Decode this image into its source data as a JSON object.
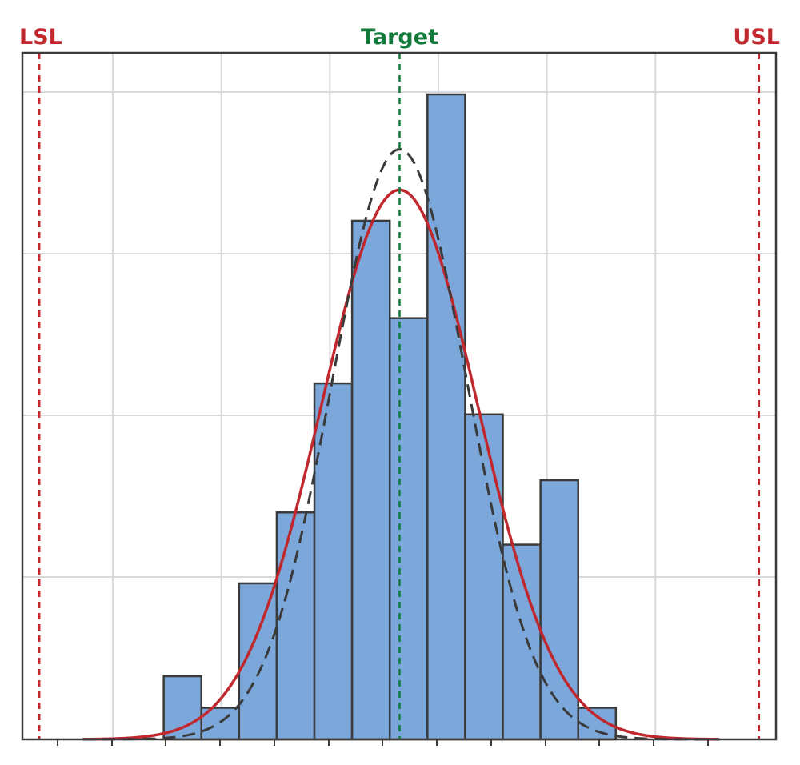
{
  "chart_data": {
    "type": "bar",
    "title": "",
    "xlabel": "",
    "ylabel": "",
    "xlim": [
      0,
      1
    ],
    "ylim": [
      0,
      1
    ],
    "grid": true,
    "bins": [
      {
        "x0": 0.1875,
        "x1": 0.2375,
        "value": 0.098
      },
      {
        "x0": 0.2375,
        "x1": 0.2875,
        "value": 0.049
      },
      {
        "x0": 0.2875,
        "x1": 0.3375,
        "value": 0.242
      },
      {
        "x0": 0.3375,
        "x1": 0.3875,
        "value": 0.352
      },
      {
        "x0": 0.3875,
        "x1": 0.4375,
        "value": 0.552
      },
      {
        "x0": 0.4375,
        "x1": 0.4875,
        "value": 0.804
      },
      {
        "x0": 0.4875,
        "x1": 0.5375,
        "value": 0.653
      },
      {
        "x0": 0.5375,
        "x1": 0.5875,
        "value": 1.0
      },
      {
        "x0": 0.5875,
        "x1": 0.6375,
        "value": 0.504
      },
      {
        "x0": 0.6375,
        "x1": 0.6875,
        "value": 0.302
      },
      {
        "x0": 0.6875,
        "x1": 0.7375,
        "value": 0.402
      },
      {
        "x0": 0.7375,
        "x1": 0.7875,
        "value": 0.049
      }
    ],
    "fit_curves": [
      {
        "style": "solid",
        "color": "#c0282d",
        "mean": 0.5005,
        "sd": 0.104,
        "peak": 0.852
      },
      {
        "style": "dashed",
        "color": "#3a3a3a",
        "mean": 0.5005,
        "sd": 0.0895,
        "peak": 0.915
      }
    ],
    "spec_lines": [
      {
        "label": "LSL",
        "x": 0.0225,
        "color": "#c0282d"
      },
      {
        "label": "Target",
        "x": 0.5005,
        "color": "#0f7a3a"
      },
      {
        "label": "USL",
        "x": 0.9775,
        "color": "#c0282d"
      }
    ],
    "bar_color": "#7ba7da",
    "bar_edge_color": "#3a3a3a"
  }
}
